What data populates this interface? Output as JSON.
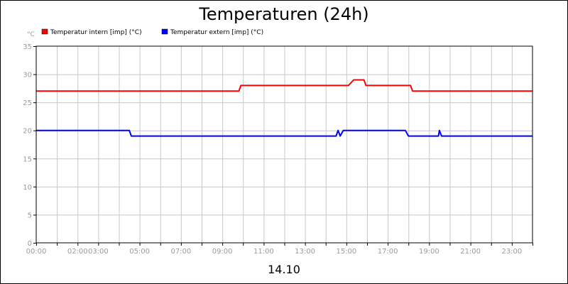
{
  "chart_data": {
    "type": "line",
    "title": "Temperaturen (24h)",
    "date_label": "14.10",
    "ylabel": "°C",
    "xlabel": "",
    "xlim": [
      0,
      24
    ],
    "ylim": [
      0,
      35
    ],
    "yticks": [
      0,
      5,
      10,
      15,
      20,
      25,
      30,
      35
    ],
    "grid": true,
    "legend_position": "top-left",
    "xticks": [
      {
        "x": 0,
        "label": "00:00"
      },
      {
        "x": 2,
        "label": "02:00"
      },
      {
        "x": 3,
        "label": "03:00"
      },
      {
        "x": 5,
        "label": "05:00"
      },
      {
        "x": 7,
        "label": "07:00"
      },
      {
        "x": 9,
        "label": "09:00"
      },
      {
        "x": 11,
        "label": "11:00"
      },
      {
        "x": 13,
        "label": "13:00"
      },
      {
        "x": 15,
        "label": "15:00"
      },
      {
        "x": 17,
        "label": "17:00"
      },
      {
        "x": 19,
        "label": "19:00"
      },
      {
        "x": 21,
        "label": "21:00"
      },
      {
        "x": 23,
        "label": "23:00"
      }
    ],
    "series": [
      {
        "name": "Temperatur intern [imp] (°C)",
        "color": "#ff0000",
        "points": [
          [
            0,
            27
          ],
          [
            9.8,
            27
          ],
          [
            9.9,
            28
          ],
          [
            15.1,
            28
          ],
          [
            15.35,
            29
          ],
          [
            15.85,
            29
          ],
          [
            15.95,
            28
          ],
          [
            18.1,
            28
          ],
          [
            18.2,
            27
          ],
          [
            24,
            27
          ]
        ]
      },
      {
        "name": "Temperatur extern [imp] (°C)",
        "color": "#0000ff",
        "points": [
          [
            0,
            20
          ],
          [
            4.5,
            20
          ],
          [
            4.6,
            19
          ],
          [
            14.5,
            19
          ],
          [
            14.6,
            20
          ],
          [
            14.7,
            19
          ],
          [
            14.85,
            20
          ],
          [
            17.85,
            20
          ],
          [
            18.0,
            19
          ],
          [
            19.45,
            19
          ],
          [
            19.5,
            20
          ],
          [
            19.6,
            19
          ],
          [
            24,
            19
          ]
        ]
      }
    ]
  }
}
